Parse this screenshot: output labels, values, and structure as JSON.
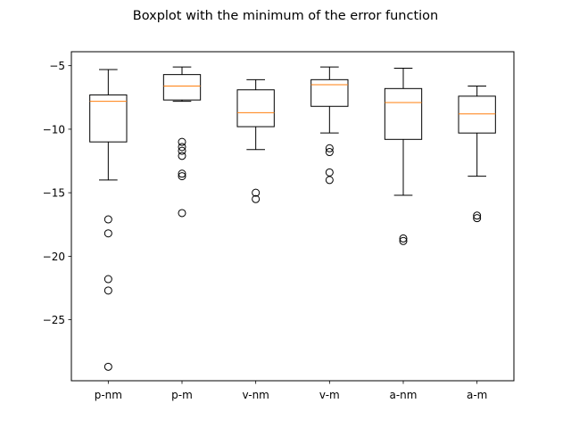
{
  "chart_data": {
    "type": "boxplot",
    "title": "Boxplot with the minimum of the error function",
    "xlabel": "",
    "ylabel": "",
    "ylim": [
      -29.8,
      -3.9
    ],
    "yticks": [
      -5,
      -10,
      -15,
      -20,
      -25
    ],
    "ytick_labels": [
      "−5",
      "−10",
      "−15",
      "−20",
      "−25"
    ],
    "grid": false,
    "categories": [
      "p-nm",
      "p-m",
      "v-nm",
      "v-m",
      "a-nm",
      "a-m"
    ],
    "boxes": [
      {
        "label": "p-nm",
        "whisker_low": -14.0,
        "q1": -11.0,
        "median": -7.8,
        "q3": -7.3,
        "whisker_high": -5.3,
        "fliers": [
          -17.1,
          -18.2,
          -21.8,
          -22.7,
          -28.7
        ]
      },
      {
        "label": "p-m",
        "whisker_low": -7.8,
        "q1": -7.7,
        "median": -6.6,
        "q3": -5.7,
        "whisker_high": -5.1,
        "fliers": [
          -11.0,
          -11.4,
          -11.7,
          -12.1,
          -13.5,
          -13.7,
          -16.6
        ]
      },
      {
        "label": "v-nm",
        "whisker_low": -11.6,
        "q1": -9.8,
        "median": -8.7,
        "q3": -6.9,
        "whisker_high": -6.1,
        "fliers": [
          -15.0,
          -15.5
        ]
      },
      {
        "label": "v-m",
        "whisker_low": -10.3,
        "q1": -8.2,
        "median": -6.5,
        "q3": -6.1,
        "whisker_high": -5.1,
        "fliers": [
          -11.5,
          -11.8,
          -13.4,
          -14.0
        ]
      },
      {
        "label": "a-nm",
        "whisker_low": -15.2,
        "q1": -10.8,
        "median": -7.9,
        "q3": -6.8,
        "whisker_high": -5.2,
        "fliers": [
          -18.6,
          -18.8
        ]
      },
      {
        "label": "a-m",
        "whisker_low": -13.7,
        "q1": -10.3,
        "median": -8.8,
        "q3": -7.4,
        "whisker_high": -6.6,
        "fliers": [
          -16.8,
          -17.0
        ]
      }
    ],
    "colors": {
      "box": "#000000",
      "median": "#ff7f0e",
      "flier": "#000000"
    }
  }
}
